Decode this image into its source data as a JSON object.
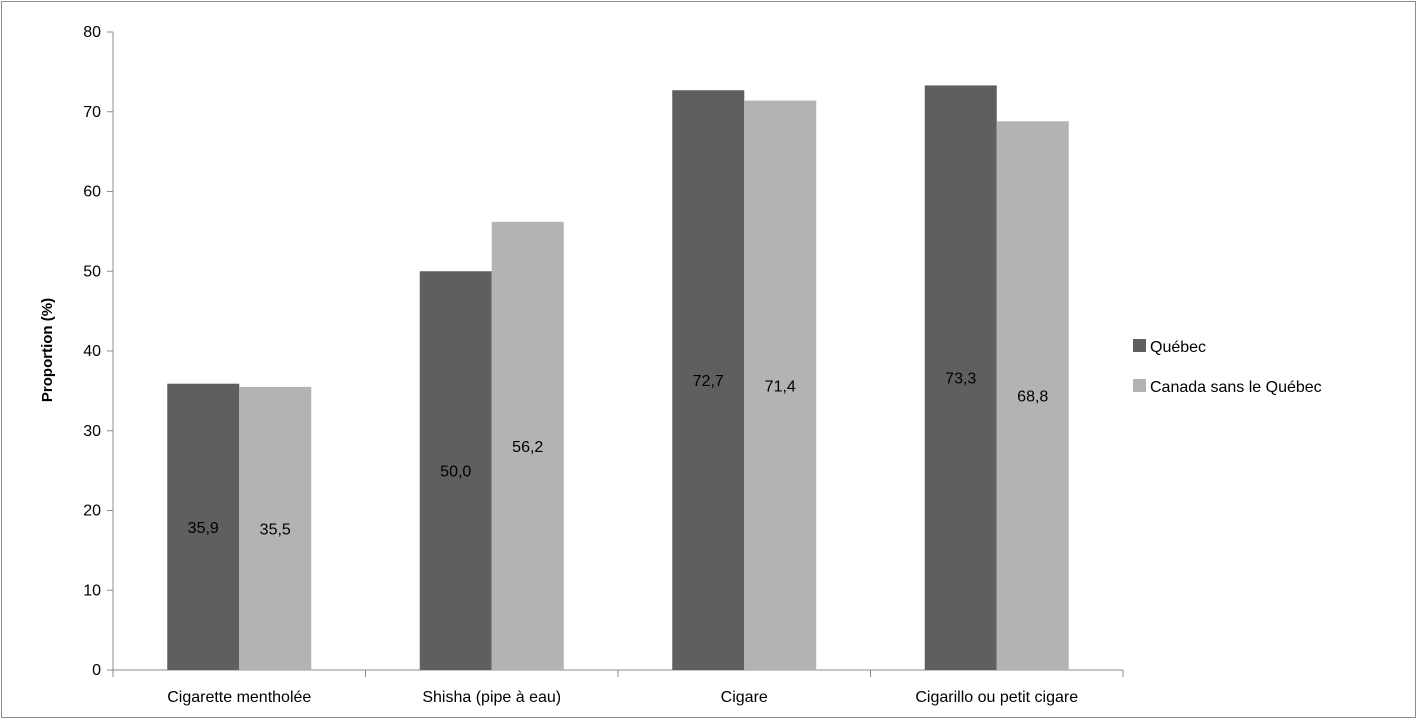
{
  "chart_data": {
    "type": "bar",
    "title": "",
    "xlabel": "",
    "ylabel": "Proportion (%)",
    "ylim": [
      0,
      80
    ],
    "yticks": [
      0,
      10,
      20,
      30,
      40,
      50,
      60,
      70,
      80
    ],
    "grid": false,
    "legend_position": "right",
    "categories": [
      "Cigarette mentholée",
      "Shisha (pipe à eau)",
      "Cigare",
      "Cigarillo ou petit cigare"
    ],
    "series": [
      {
        "name": "Québec",
        "color": "#5f5f5f",
        "values": [
          35.9,
          50.0,
          72.7,
          73.3
        ],
        "labels": [
          "35,9",
          "50,0",
          "72,7",
          "73,3"
        ]
      },
      {
        "name": "Canada sans le Québec",
        "color": "#b3b3b3",
        "values": [
          35.5,
          56.2,
          71.4,
          68.8
        ],
        "labels": [
          "35,5",
          "56,2",
          "71,4",
          "68,8"
        ]
      }
    ]
  }
}
